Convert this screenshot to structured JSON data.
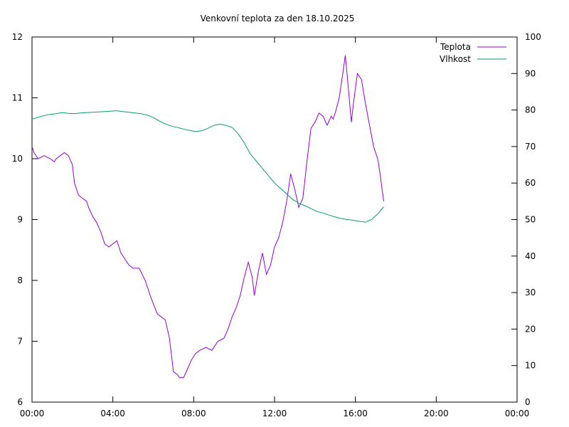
{
  "chart_data": {
    "type": "line",
    "title": "Venkovní teplota za den 18.10.2025",
    "xlabel": "",
    "ylabel": "",
    "y2label": "",
    "grid": false,
    "legend": "top-right",
    "x_unit": "hours",
    "xlim": [
      0,
      24
    ],
    "x_ticks": [
      0,
      4,
      8,
      12,
      16,
      20,
      24
    ],
    "x_tick_labels": [
      "00:00",
      "04:00",
      "08:00",
      "12:00",
      "16:00",
      "20:00",
      "00:00"
    ],
    "ylim": [
      6,
      12
    ],
    "y_ticks": [
      6,
      7,
      8,
      9,
      10,
      11,
      12
    ],
    "y_tick_labels": [
      "6",
      "7",
      "8",
      "9",
      "10",
      "11",
      "12"
    ],
    "y2lim": [
      0,
      100
    ],
    "y2_ticks": [
      0,
      10,
      20,
      30,
      40,
      50,
      60,
      70,
      80,
      90,
      100
    ],
    "y2_tick_labels": [
      "0",
      "10",
      "20",
      "30",
      "40",
      "50",
      "60",
      "70",
      "80",
      "90",
      "100"
    ],
    "series": [
      {
        "name": "Teplota",
        "axis": "left",
        "color": "#9400d3",
        "x": [
          0.0,
          0.1,
          0.3,
          0.6,
          0.9,
          1.1,
          1.2,
          1.4,
          1.6,
          1.8,
          2.0,
          2.1,
          2.3,
          2.5,
          2.7,
          2.8,
          3.0,
          3.2,
          3.4,
          3.6,
          3.8,
          4.0,
          4.2,
          4.4,
          4.6,
          4.8,
          5.0,
          5.3,
          5.6,
          5.9,
          6.2,
          6.4,
          6.6,
          6.8,
          7.0,
          7.2,
          7.3,
          7.5,
          7.7,
          7.9,
          8.1,
          8.3,
          8.6,
          8.9,
          9.2,
          9.5,
          9.7,
          9.9,
          10.1,
          10.3,
          10.5,
          10.7,
          10.9,
          11.0,
          11.2,
          11.4,
          11.6,
          11.8,
          12.0,
          12.2,
          12.4,
          12.6,
          12.8,
          13.0,
          13.2,
          13.4,
          13.6,
          13.8,
          14.0,
          14.2,
          14.4,
          14.6,
          14.8,
          14.9,
          15.0,
          15.2,
          15.4,
          15.5,
          15.6,
          15.8,
          15.9,
          16.1,
          16.3,
          16.5,
          16.7,
          16.9,
          17.1,
          17.2,
          17.3,
          17.4
        ],
        "values": [
          10.2,
          10.1,
          10.0,
          10.05,
          10.0,
          9.95,
          10.0,
          10.05,
          10.1,
          10.05,
          9.9,
          9.6,
          9.4,
          9.35,
          9.3,
          9.2,
          9.05,
          8.95,
          8.8,
          8.6,
          8.55,
          8.6,
          8.65,
          8.45,
          8.35,
          8.25,
          8.2,
          8.2,
          8.0,
          7.7,
          7.45,
          7.4,
          7.35,
          7.05,
          6.5,
          6.45,
          6.4,
          6.4,
          6.55,
          6.7,
          6.8,
          6.85,
          6.9,
          6.85,
          7.0,
          7.05,
          7.2,
          7.4,
          7.55,
          7.75,
          8.05,
          8.3,
          8.05,
          7.75,
          8.15,
          8.45,
          8.1,
          8.25,
          8.55,
          8.7,
          8.95,
          9.3,
          9.75,
          9.5,
          9.2,
          9.35,
          9.95,
          10.5,
          10.6,
          10.75,
          10.7,
          10.55,
          10.7,
          10.65,
          10.75,
          11.0,
          11.45,
          11.7,
          11.35,
          10.6,
          10.9,
          11.4,
          11.3,
          10.9,
          10.55,
          10.2,
          10.0,
          9.8,
          9.55,
          9.3
        ]
      },
      {
        "name": "Vlhkost",
        "axis": "right",
        "color": "#009e73",
        "x": [
          0.0,
          0.3,
          0.6,
          0.9,
          1.2,
          1.5,
          1.8,
          2.1,
          2.4,
          2.7,
          3.0,
          3.3,
          3.6,
          3.9,
          4.2,
          4.5,
          4.8,
          5.1,
          5.4,
          5.7,
          6.0,
          6.3,
          6.6,
          6.9,
          7.2,
          7.5,
          7.8,
          8.1,
          8.4,
          8.7,
          9.0,
          9.3,
          9.6,
          9.9,
          10.2,
          10.5,
          10.8,
          11.1,
          11.4,
          11.7,
          12.0,
          12.3,
          12.6,
          12.9,
          13.2,
          13.5,
          13.8,
          14.1,
          14.4,
          14.7,
          15.0,
          15.3,
          15.6,
          15.9,
          16.2,
          16.5,
          16.8,
          17.1,
          17.4
        ],
        "values": [
          77.5,
          78.0,
          78.5,
          78.8,
          79.0,
          79.3,
          79.1,
          79.0,
          79.2,
          79.3,
          79.4,
          79.5,
          79.6,
          79.7,
          79.8,
          79.6,
          79.4,
          79.2,
          79.0,
          78.6,
          78.0,
          77.0,
          76.2,
          75.6,
          75.2,
          74.8,
          74.4,
          74.1,
          74.3,
          75.0,
          75.8,
          76.1,
          75.8,
          75.2,
          73.5,
          71.0,
          68.0,
          66.0,
          64.0,
          62.0,
          60.0,
          58.5,
          57.0,
          55.5,
          54.5,
          53.8,
          53.0,
          52.2,
          51.8,
          51.2,
          50.7,
          50.3,
          50.0,
          49.8,
          49.5,
          49.3,
          50.0,
          51.5,
          53.5
        ]
      }
    ]
  }
}
